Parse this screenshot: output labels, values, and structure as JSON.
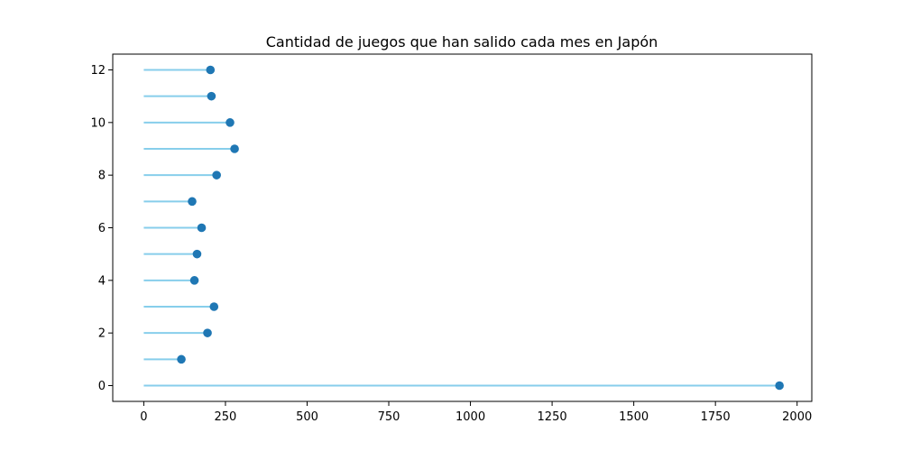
{
  "chart_data": {
    "type": "lollipop",
    "orientation": "horizontal",
    "title": "Cantidad de juegos que han salido cada mes en Japón",
    "xlabel": "",
    "ylabel": "",
    "xlim": [
      -95,
      2045
    ],
    "ylim": [
      -0.6,
      12.6
    ],
    "xticks": [
      0,
      250,
      500,
      750,
      1000,
      1250,
      1500,
      1750,
      2000
    ],
    "yticks": [
      0,
      2,
      4,
      6,
      8,
      10,
      12
    ],
    "grid": false,
    "legend": "none",
    "stem_color": "#87CEEB",
    "marker_color": "#1F77B4",
    "points": [
      {
        "y": 0,
        "x": 1946
      },
      {
        "y": 1,
        "x": 115
      },
      {
        "y": 2,
        "x": 195
      },
      {
        "y": 3,
        "x": 215
      },
      {
        "y": 4,
        "x": 155
      },
      {
        "y": 5,
        "x": 163
      },
      {
        "y": 6,
        "x": 177
      },
      {
        "y": 7,
        "x": 148
      },
      {
        "y": 8,
        "x": 223
      },
      {
        "y": 9,
        "x": 278
      },
      {
        "y": 10,
        "x": 264
      },
      {
        "y": 11,
        "x": 207
      },
      {
        "y": 12,
        "x": 204
      }
    ]
  }
}
